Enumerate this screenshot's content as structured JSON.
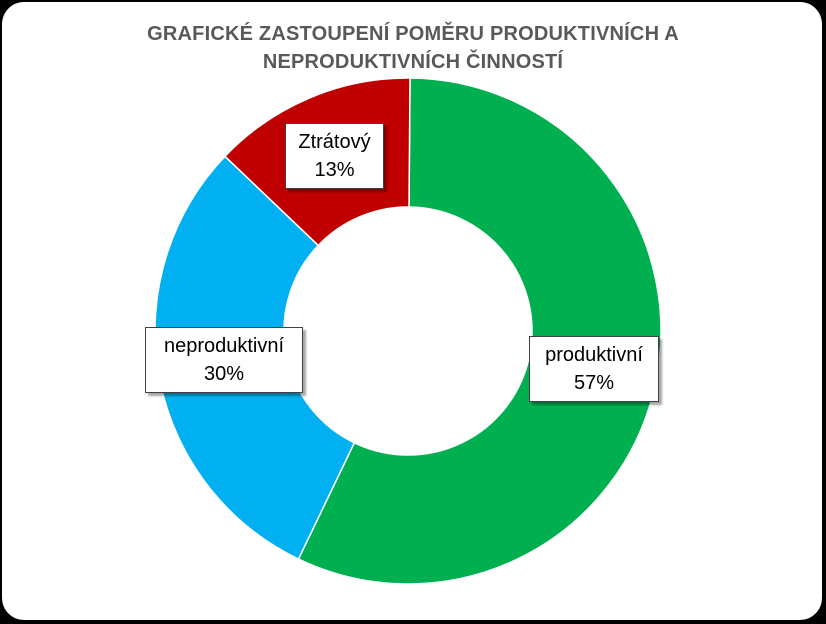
{
  "chart_data": {
    "type": "pie",
    "variant": "doughnut",
    "title_lines": [
      "GRAFICKÉ ZASTOUPENÍ POMĚRU PRODUKTIVNÍCH A",
      "NEPRODUKTIVNÍCH ČINNOSTÍ"
    ],
    "slices": [
      {
        "label": "produktivní",
        "value": 57,
        "value_label": "57%",
        "color": "#00b050"
      },
      {
        "label": "neproduktivní",
        "value": 30,
        "value_label": "30%",
        "color": "#00b0f0"
      },
      {
        "label": "Ztrátový",
        "value": 13,
        "value_label": "13%",
        "color": "#c00000"
      }
    ],
    "legend": "none"
  }
}
